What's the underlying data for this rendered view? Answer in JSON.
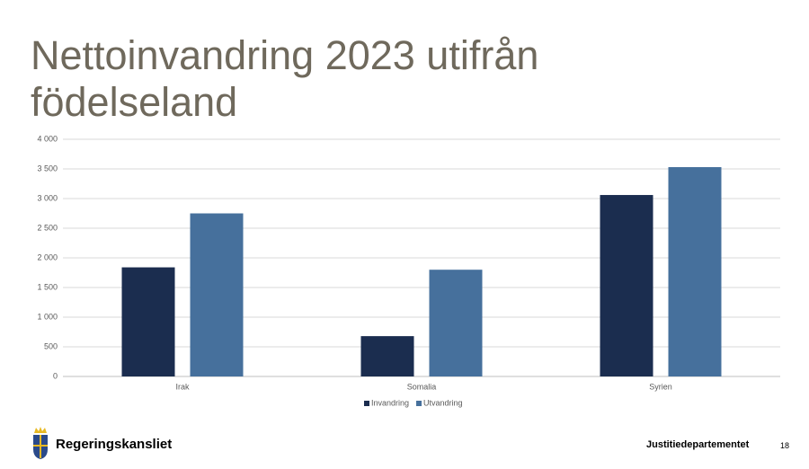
{
  "chart_data": {
    "type": "bar",
    "title": "Nettoinvandring 2023 utifrån födelseland",
    "categories": [
      "Irak",
      "Somalia",
      "Syrien"
    ],
    "series": [
      {
        "name": "Invandring",
        "color": "#1b2d4f",
        "values": [
          1840,
          680,
          3060
        ]
      },
      {
        "name": "Utvandring",
        "color": "#46709c",
        "values": [
          2750,
          1800,
          3530
        ]
      }
    ],
    "ylim": [
      0,
      4000
    ],
    "yticks": [
      0,
      500,
      {
        "value": 1000,
        "label": "1 000"
      },
      {
        "value": 1500,
        "label": "1 500"
      },
      {
        "value": 2000,
        "label": "2 000"
      },
      {
        "value": 2500,
        "label": "2 500"
      },
      {
        "value": 3000,
        "label": "3 000"
      },
      {
        "value": 3500,
        "label": "3 500"
      },
      {
        "value": 4000,
        "label": "4 000"
      }
    ],
    "grid": true,
    "legend": "bottom"
  },
  "footer": {
    "organization": "Regeringskansliet",
    "department": "Justitiedepartementet",
    "page": "18"
  }
}
